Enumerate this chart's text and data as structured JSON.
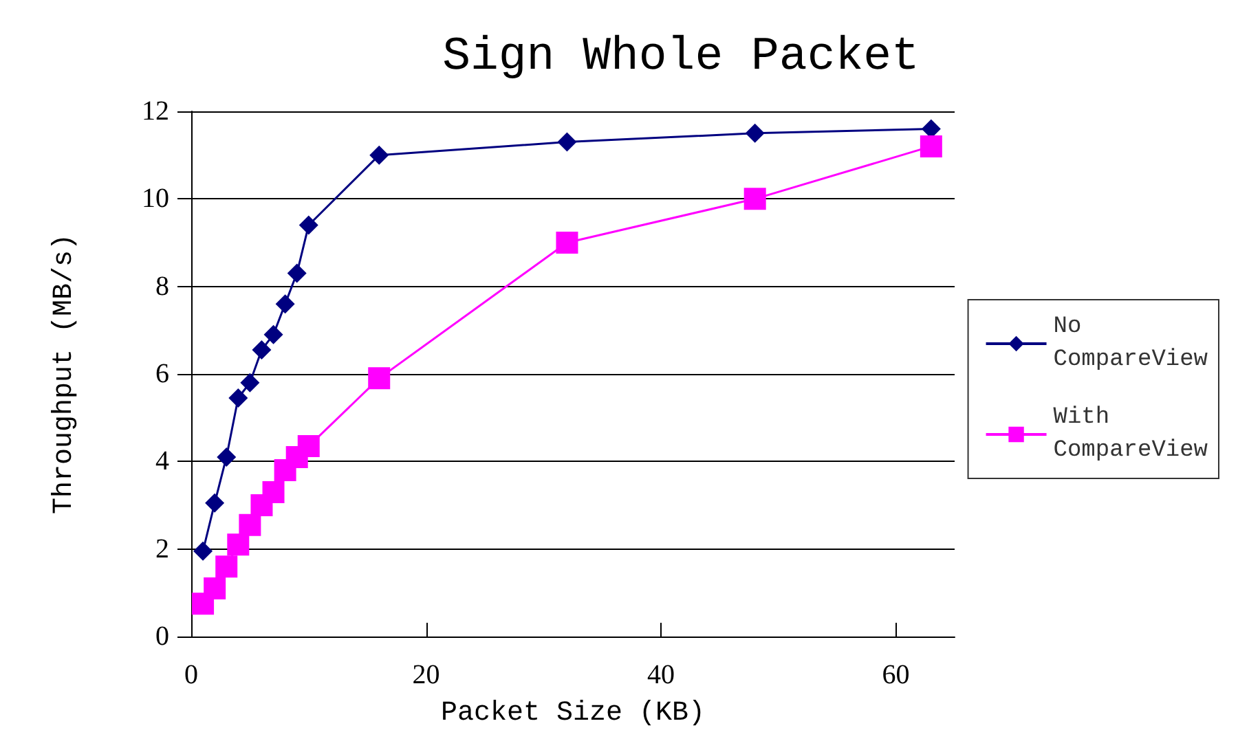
{
  "chart_data": {
    "type": "line",
    "title": "Sign Whole Packet",
    "xlabel": "Packet Size (KB)",
    "ylabel": "Throughput (MB/s)",
    "xlim": [
      0,
      65
    ],
    "xticks": [
      0,
      20,
      40,
      60
    ],
    "ylim": [
      0,
      12
    ],
    "yticks": [
      0,
      2,
      4,
      6,
      8,
      10,
      12
    ],
    "grid": "y",
    "legend": "right",
    "series": [
      {
        "name": "No CompareView",
        "color": "#000080",
        "marker": "diamond",
        "x": [
          1,
          2,
          3,
          4,
          5,
          6,
          7,
          8,
          9,
          10,
          16,
          32,
          48,
          63
        ],
        "values": [
          1.95,
          3.05,
          4.1,
          5.45,
          5.8,
          6.55,
          6.9,
          7.6,
          8.3,
          9.4,
          11.0,
          11.3,
          11.5,
          11.6
        ]
      },
      {
        "name": "With CompareView",
        "color": "#ff00ff",
        "marker": "square",
        "x": [
          1,
          2,
          3,
          4,
          5,
          6,
          7,
          8,
          9,
          10,
          16,
          32,
          48,
          63
        ],
        "values": [
          0.75,
          1.1,
          1.6,
          2.1,
          2.55,
          3.0,
          3.3,
          3.8,
          4.1,
          4.35,
          5.9,
          9.0,
          10.0,
          11.2
        ]
      }
    ]
  }
}
